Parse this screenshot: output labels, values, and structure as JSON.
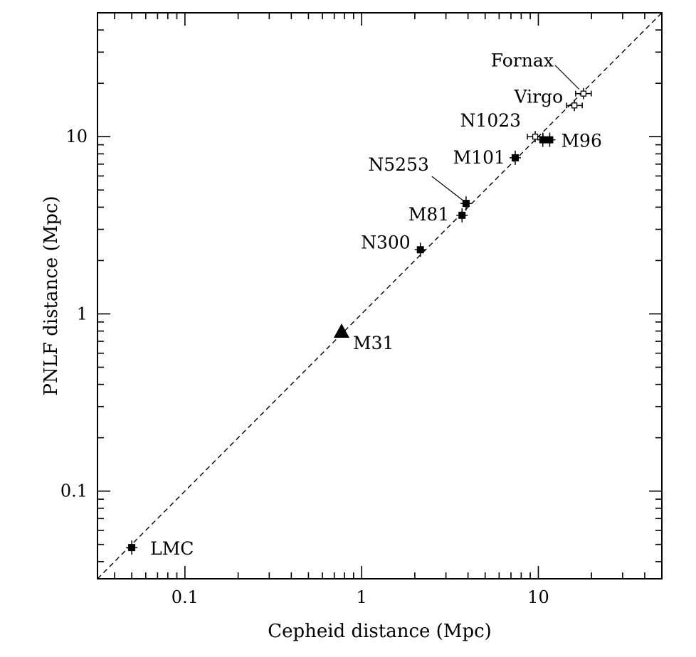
{
  "chart_data": {
    "type": "scatter",
    "title": "",
    "xlabel": "Cepheid distance (Mpc)",
    "ylabel": "PNLF distance (Mpc)",
    "xscale": "log",
    "yscale": "log",
    "xlim": [
      0.032,
      50
    ],
    "ylim": [
      0.032,
      50
    ],
    "grid": false,
    "reference_line": {
      "style": "dashed",
      "relation": "y = x"
    },
    "x_ticks": [
      {
        "value": 0.1,
        "label": "0.1"
      },
      {
        "value": 1,
        "label": "1"
      },
      {
        "value": 10,
        "label": "10"
      }
    ],
    "y_ticks": [
      {
        "value": 0.1,
        "label": "0.1"
      },
      {
        "value": 1,
        "label": "1"
      },
      {
        "value": 10,
        "label": "10"
      }
    ],
    "points": [
      {
        "label": "LMC",
        "x": 0.05,
        "y": 0.048,
        "marker": "square-filled"
      },
      {
        "label": "M31",
        "x": 0.77,
        "y": 0.79,
        "marker": "triangle-filled"
      },
      {
        "label": "N300",
        "x": 2.15,
        "y": 2.3,
        "marker": "square-filled"
      },
      {
        "label": "M81",
        "x": 3.7,
        "y": 3.6,
        "marker": "square-filled"
      },
      {
        "label": "N5253",
        "x": 3.9,
        "y": 4.2,
        "marker": "square-filled"
      },
      {
        "label": "M101",
        "x": 7.4,
        "y": 7.6,
        "marker": "square-filled"
      },
      {
        "label": "N1023",
        "x": 9.6,
        "y": 10.0,
        "marker": "open-cross"
      },
      {
        "label": "M96",
        "x": 11.6,
        "y": 9.6,
        "marker": "square-filled"
      },
      {
        "label": "",
        "x": 10.6,
        "y": 9.6,
        "marker": "square-filled"
      },
      {
        "label": "Virgo",
        "x": 16.0,
        "y": 15.0,
        "marker": "open-cross"
      },
      {
        "label": "Fornax",
        "x": 18.0,
        "y": 17.5,
        "marker": "open-cross"
      }
    ]
  }
}
